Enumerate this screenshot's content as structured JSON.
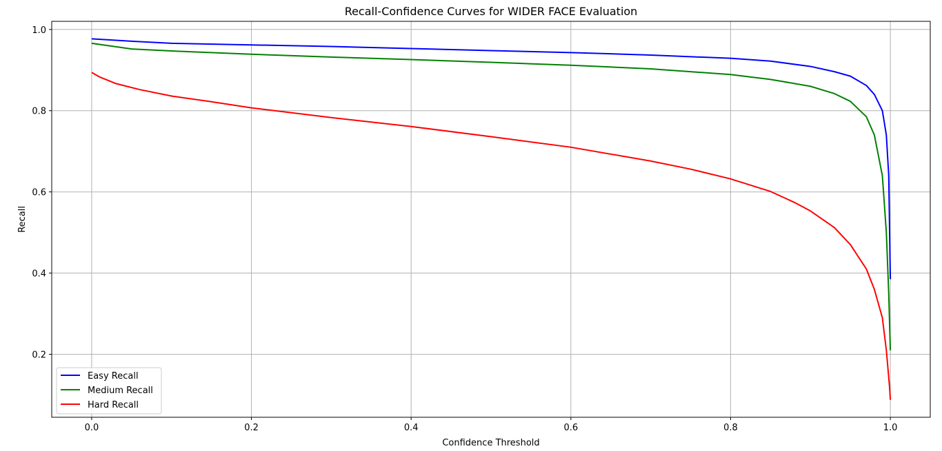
{
  "chart_data": {
    "type": "line",
    "title": "Recall-Confidence Curves for WIDER FACE Evaluation",
    "xlabel": "Confidence Threshold",
    "ylabel": "Recall",
    "xlim": [
      -0.05,
      1.05
    ],
    "ylim": [
      0.045,
      1.02
    ],
    "xticks": [
      0.0,
      0.2,
      0.4,
      0.6,
      0.8,
      1.0
    ],
    "xtick_labels": [
      "0.0",
      "0.2",
      "0.4",
      "0.6",
      "0.8",
      "1.0"
    ],
    "yticks": [
      0.2,
      0.4,
      0.6,
      0.8,
      1.0
    ],
    "ytick_labels": [
      "0.2",
      "0.4",
      "0.6",
      "0.8",
      "1.0"
    ],
    "grid": true,
    "legend_position": "lower-left",
    "series": [
      {
        "name": "Easy Recall",
        "color": "#0000ff",
        "x": [
          0.0,
          0.05,
          0.1,
          0.2,
          0.3,
          0.4,
          0.5,
          0.6,
          0.7,
          0.8,
          0.85,
          0.9,
          0.93,
          0.95,
          0.97,
          0.98,
          0.99,
          0.995,
          0.998,
          1.0
        ],
        "y": [
          0.977,
          0.971,
          0.966,
          0.962,
          0.958,
          0.953,
          0.948,
          0.943,
          0.937,
          0.929,
          0.922,
          0.909,
          0.896,
          0.885,
          0.862,
          0.84,
          0.8,
          0.74,
          0.64,
          0.385
        ]
      },
      {
        "name": "Medium Recall",
        "color": "#008000",
        "x": [
          0.0,
          0.05,
          0.1,
          0.2,
          0.3,
          0.4,
          0.5,
          0.6,
          0.7,
          0.8,
          0.85,
          0.9,
          0.93,
          0.95,
          0.97,
          0.98,
          0.99,
          0.995,
          0.998,
          1.0
        ],
        "y": [
          0.966,
          0.952,
          0.947,
          0.939,
          0.932,
          0.926,
          0.919,
          0.912,
          0.903,
          0.889,
          0.877,
          0.86,
          0.842,
          0.823,
          0.785,
          0.74,
          0.64,
          0.5,
          0.35,
          0.21
        ]
      },
      {
        "name": "Hard Recall",
        "color": "#ff0000",
        "x": [
          0.0,
          0.01,
          0.03,
          0.06,
          0.1,
          0.15,
          0.2,
          0.3,
          0.4,
          0.5,
          0.6,
          0.7,
          0.75,
          0.8,
          0.85,
          0.88,
          0.9,
          0.93,
          0.95,
          0.97,
          0.98,
          0.99,
          0.995,
          0.999,
          1.0
        ],
        "y": [
          0.894,
          0.883,
          0.867,
          0.852,
          0.836,
          0.822,
          0.807,
          0.783,
          0.761,
          0.736,
          0.71,
          0.676,
          0.656,
          0.632,
          0.601,
          0.574,
          0.553,
          0.512,
          0.47,
          0.41,
          0.36,
          0.29,
          0.21,
          0.12,
          0.088
        ]
      }
    ]
  }
}
